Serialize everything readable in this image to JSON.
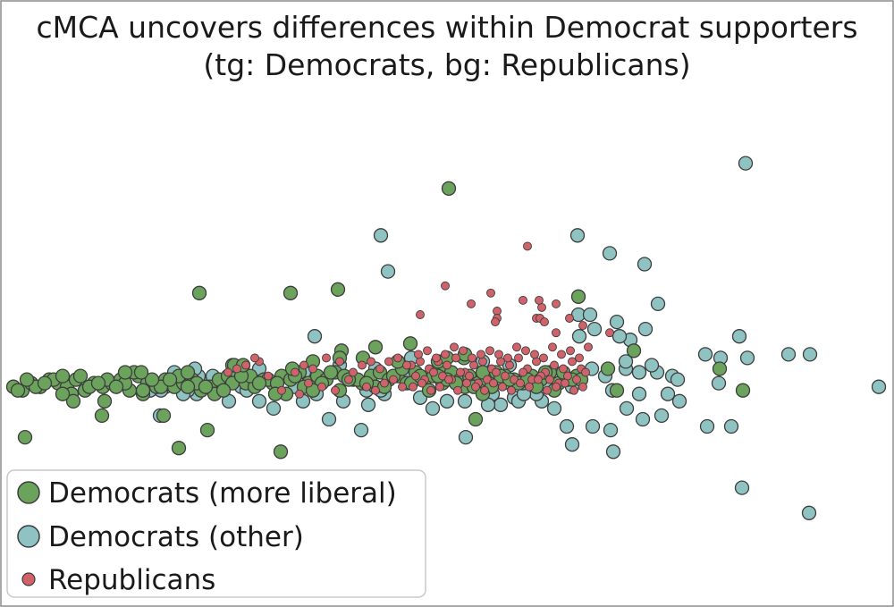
{
  "chart_data": {
    "type": "scatter",
    "title": "cMCA uncovers differences within Democrat supporters",
    "subtitle": "(tg: Democrats, bg: Republicans)",
    "xlabel": "",
    "ylabel": "",
    "grid": false,
    "xlim": [
      0,
      1000
    ],
    "ylim": [
      -20,
      100
    ],
    "legend": {
      "placement": "lower-left",
      "entries": [
        "Democrats (more liberal)",
        "Democrats (other)",
        "Republicans"
      ]
    },
    "colors": {
      "Democrats (more liberal)": "#6ba35c",
      "Democrats (other)": "#8fc3c2",
      "Republicans": "#d0626a",
      "marker_edge": "#3d3d3d"
    },
    "series": [
      {
        "name": "Democrats (other)",
        "marker": "large",
        "x": [
          834,
          646,
          426,
          682,
          721,
          434,
          736,
          647,
          660,
          648,
          690,
          705,
          665,
          722,
          693,
          352,
          827,
          836,
          789,
          806,
          882,
          906,
          662,
          677,
          700,
          715,
          735,
          752,
          758,
          983,
          804,
          747,
          715,
          685,
          760,
          701,
          740,
          719,
          791,
          818,
          634,
          663,
          683,
          686,
          606,
          620,
          600,
          575,
          560,
          540,
          521,
          551,
          580,
          610,
          500,
          470,
          430,
          410,
          404,
          384,
          354,
          330,
          290,
          280,
          270,
          245,
          230,
          220,
          210,
          185,
          180,
          830,
          905,
          640,
          700,
          715,
          729,
          640,
          586,
          563,
          546,
          520,
          484,
          460,
          426,
          412,
          368,
          339,
          306,
          276,
          256,
          222,
          205,
          179,
          168,
          120,
          610,
          570,
          540,
          490,
          460,
          420,
          380,
          340,
          290,
          258,
          238,
          218,
          195
        ],
        "y": [
          82,
          62,
          62,
          57,
          54,
          52,
          43,
          40,
          40,
          34,
          38,
          33,
          36,
          36,
          34,
          34,
          34,
          28,
          29,
          28,
          29,
          29,
          25,
          23,
          25,
          24,
          24,
          23,
          22,
          20,
          21,
          18,
          18,
          19,
          16,
          14,
          12,
          11,
          9,
          9,
          9,
          9,
          8,
          2,
          16,
          14,
          18,
          17,
          15,
          20,
          6,
          18,
          16,
          20,
          16,
          17,
          18,
          19,
          8,
          16,
          18,
          20,
          16,
          21,
          20,
          22,
          21,
          18,
          19,
          20,
          19,
          -8,
          -15,
          4,
          27,
          24,
          26,
          20,
          18,
          21,
          15,
          16,
          14,
          23,
          19,
          15,
          11,
          16,
          14,
          19,
          16,
          23,
          18,
          12,
          19,
          21,
          24,
          26,
          27,
          24,
          28,
          25,
          26,
          24,
          25,
          23,
          23,
          25,
          24
        ]
      },
      {
        "name": "Democrats (more liberal)",
        "marker": "large",
        "x": [
          502,
          223,
          325,
          378,
          647,
          459,
          709,
          382,
          406,
          496,
          519,
          520,
          805,
          831,
          28,
          200,
          314,
          232,
          114,
          183,
          15,
          25,
          35,
          45,
          55,
          65,
          75,
          85,
          95,
          105,
          115,
          125,
          135,
          145,
          155,
          165,
          175,
          185,
          195,
          205,
          215,
          225,
          235,
          245,
          255,
          265,
          275,
          285,
          295,
          305,
          315,
          325,
          335,
          345,
          355,
          365,
          375,
          385,
          395,
          405,
          415,
          425,
          435,
          445,
          455,
          465,
          475,
          485,
          495,
          505,
          515,
          525,
          535,
          545,
          555,
          565,
          575,
          585,
          595,
          605,
          615,
          625,
          635,
          645,
          40,
          60,
          80,
          100,
          120,
          140,
          160,
          180,
          200,
          220,
          240,
          260,
          280,
          300,
          320,
          340,
          360,
          380,
          400,
          420,
          440,
          460,
          480,
          500,
          520,
          540,
          560,
          580,
          600,
          620,
          640,
          30,
          70,
          110,
          150,
          190,
          230,
          270,
          310,
          350,
          390,
          430,
          470,
          510,
          550,
          590,
          630,
          20,
          50,
          90,
          130,
          170,
          210,
          250,
          290,
          330,
          370,
          410,
          450,
          490,
          530,
          570,
          610,
          650,
          690,
          680,
          540,
          532,
          490,
          445,
          380,
          327,
          308,
          260,
          210,
          160,
          117,
          82,
          70,
          140,
          158,
          262,
          272,
          350,
          420,
          500
        ],
        "y": [
          75,
          46,
          46,
          47,
          45,
          32,
          30,
          30,
          28,
          26,
          28,
          29,
          25,
          19,
          6,
          3,
          2,
          8,
          12,
          12,
          20,
          19,
          21,
          20,
          22,
          21,
          20,
          22,
          19,
          21,
          20,
          21,
          22,
          19,
          23,
          21,
          20,
          22,
          20,
          21,
          22,
          19,
          20,
          22,
          23,
          24,
          21,
          20,
          22,
          21,
          23,
          22,
          24,
          21,
          23,
          22,
          24,
          23,
          22,
          21,
          23,
          24,
          22,
          23,
          21,
          24,
          22,
          23,
          21,
          24,
          22,
          23,
          21,
          22,
          24,
          23,
          22,
          21,
          23,
          22,
          24,
          21,
          22,
          23,
          20,
          22,
          18,
          20,
          22,
          21,
          18,
          20,
          23,
          21,
          18,
          21,
          23,
          22,
          18,
          20,
          21,
          19,
          22,
          20,
          23,
          21,
          19,
          22,
          20,
          24,
          23,
          21,
          20,
          19,
          22,
          22,
          23,
          21,
          24,
          22,
          20,
          23,
          21,
          19,
          22,
          20,
          23,
          21,
          20,
          22,
          24,
          19,
          21,
          23,
          20,
          22,
          24,
          19,
          21,
          23,
          24,
          21,
          25,
          23,
          20,
          22,
          24,
          22,
          19,
          25,
          18,
          11,
          27,
          27,
          28,
          25,
          18,
          26,
          20,
          19,
          16,
          16,
          18,
          24,
          24,
          26,
          26,
          27,
          31,
          28
        ]
      },
      {
        "name": "Republicans",
        "marker": "small",
        "x": [
          590,
          498,
          470,
          527,
          549,
          606,
          622,
          556,
          603,
          585,
          637,
          600,
          604,
          609,
          556,
          554,
          658,
          682,
          652,
          622,
          460,
          470,
          480,
          490,
          500,
          510,
          520,
          530,
          540,
          550,
          560,
          570,
          580,
          590,
          600,
          610,
          620,
          630,
          640,
          650,
          465,
          475,
          485,
          495,
          505,
          515,
          525,
          535,
          545,
          555,
          565,
          575,
          585,
          595,
          605,
          615,
          625,
          635,
          645,
          655,
          462,
          472,
          482,
          492,
          502,
          512,
          522,
          532,
          542,
          552,
          562,
          572,
          582,
          592,
          602,
          612,
          622,
          632,
          642,
          652,
          468,
          478,
          488,
          498,
          508,
          518,
          528,
          538,
          548,
          558,
          568,
          578,
          588,
          598,
          608,
          618,
          628,
          638,
          648,
          435,
          445,
          455,
          425,
          415,
          405,
          395,
          380,
          365,
          350,
          340,
          330,
          300,
          290,
          285,
          275,
          265,
          255,
          410,
          420,
          430,
          440,
          450,
          390,
          375,
          360,
          345,
          335,
          315
        ],
        "y": [
          59,
          48,
          40,
          43,
          46,
          42,
          43,
          41,
          44,
          44,
          39,
          39,
          39,
          38,
          39,
          38,
          31,
          35,
          37,
          35,
          26,
          27,
          25,
          27,
          26,
          28,
          24,
          26,
          27,
          25,
          27,
          26,
          28,
          25,
          27,
          24,
          26,
          25,
          27,
          25,
          23,
          22,
          24,
          23,
          22,
          24,
          23,
          21,
          22,
          24,
          23,
          22,
          24,
          22,
          23,
          22,
          21,
          23,
          22,
          24,
          20,
          21,
          19,
          20,
          22,
          19,
          21,
          20,
          19,
          21,
          20,
          19,
          21,
          20,
          22,
          19,
          20,
          21,
          19,
          20,
          29,
          30,
          28,
          29,
          31,
          30,
          28,
          29,
          30,
          29,
          28,
          31,
          30,
          29,
          28,
          31,
          29,
          30,
          28,
          27,
          28,
          26,
          25,
          27,
          26,
          24,
          27,
          28,
          25,
          26,
          24,
          23,
          27,
          28,
          26,
          25,
          24,
          20,
          19,
          21,
          22,
          20,
          22,
          19,
          20,
          21,
          18,
          19
        ]
      }
    ]
  }
}
